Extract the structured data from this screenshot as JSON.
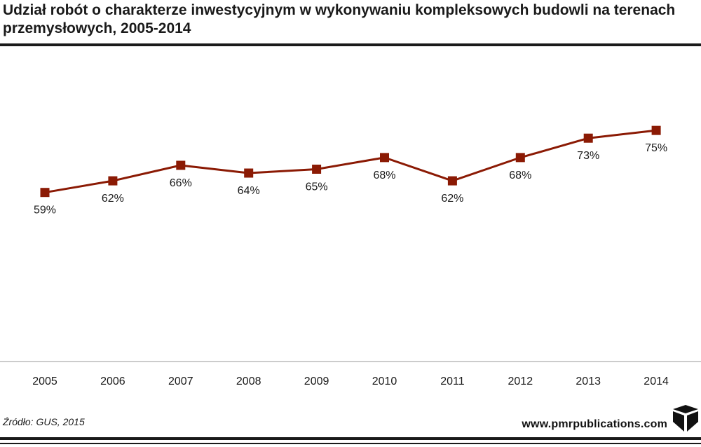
{
  "chart_data": {
    "type": "line",
    "title": "Udział robót o charakterze inwestycyjnym w wykonywaniu kompleksowych budowli na terenach przemysłowych, 2005-2014",
    "categories": [
      "2005",
      "2006",
      "2007",
      "2008",
      "2009",
      "2010",
      "2011",
      "2012",
      "2013",
      "2014"
    ],
    "values": [
      59,
      62,
      66,
      64,
      65,
      68,
      62,
      68,
      73,
      75
    ],
    "labels": [
      "59%",
      "62%",
      "66%",
      "64%",
      "65%",
      "68%",
      "62%",
      "68%",
      "73%",
      "75%"
    ],
    "label_position": [
      "below",
      "below",
      "below",
      "below",
      "below",
      "below",
      "below",
      "below",
      "below",
      "below"
    ],
    "ylim": [
      0,
      100
    ],
    "grid": false,
    "line_color": "#8b1a04",
    "marker_color": "#8b1a04"
  },
  "footer": {
    "source": "Źródło: GUS, 2015",
    "brand": "www.pmrpublications.com",
    "logo_icon": "cube-logo-icon"
  }
}
